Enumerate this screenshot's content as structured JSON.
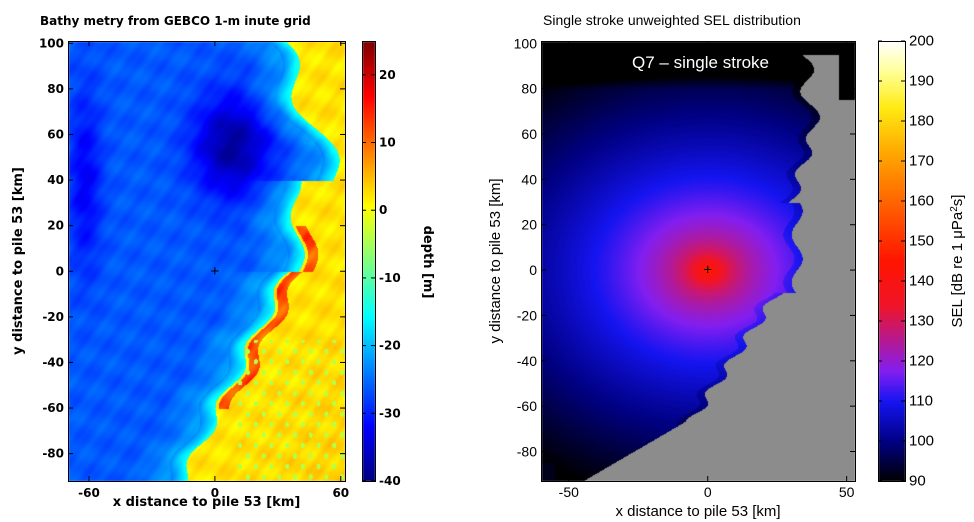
{
  "chart_data": [
    {
      "type": "heatmap",
      "title": "Bathy metry  from  GEBCO 1-m inute grid",
      "xlabel": "x distance to pile 53 [km]",
      "ylabel": "y distance to pile 53 [km]",
      "xlim": [
        -70,
        62
      ],
      "ylim": [
        -92,
        101
      ],
      "xticks": [
        -60,
        0,
        60
      ],
      "xtick_labels": [
        "-60",
        "0",
        "60"
      ],
      "yticks": [
        -80,
        -60,
        -40,
        -20,
        0,
        20,
        40,
        60,
        80,
        100
      ],
      "ytick_labels": [
        "-80",
        "-60",
        "-40",
        "-20",
        "0",
        "20",
        "40",
        "60",
        "80",
        "100"
      ],
      "marker": {
        "x": 0,
        "y": 0,
        "symbol": "+"
      },
      "colorbar": {
        "label": "depth [m]",
        "colormap": "jet",
        "range": [
          -40,
          25
        ],
        "ticks": [
          -40,
          -30,
          -20,
          -10,
          0,
          10,
          20
        ],
        "tick_labels": [
          "-40",
          "-30",
          "-20",
          "-10",
          "0",
          "10",
          "20"
        ]
      }
    },
    {
      "type": "heatmap",
      "title": "Single stroke unweighted SEL distribution",
      "annotation": "Q7 – single stroke",
      "xlabel": "x distance to pile 53 [km]",
      "ylabel": "y distance to pile 53 [km]",
      "xlim": [
        -60,
        53
      ],
      "ylim": [
        -93,
        101
      ],
      "xticks": [
        -50,
        0,
        50
      ],
      "xtick_labels": [
        "-50",
        "0",
        "50"
      ],
      "yticks": [
        -80,
        -60,
        -40,
        -20,
        0,
        20,
        40,
        60,
        80,
        100
      ],
      "ytick_labels": [
        "-80",
        "-60",
        "-40",
        "-20",
        "0",
        "20",
        "40",
        "60",
        "80",
        "100"
      ],
      "marker": {
        "x": 0,
        "y": 0,
        "symbol": "+"
      },
      "land_color": "#8c8c8c",
      "colorbar": {
        "label_prefix": "SEL [dB re 1 μPa",
        "label_sup": "2",
        "label_suffix": "s]",
        "colormap": "hot-jet",
        "range": [
          90,
          200
        ],
        "ticks": [
          90,
          100,
          110,
          120,
          130,
          140,
          150,
          160,
          170,
          180,
          190,
          200
        ],
        "tick_labels": [
          "90",
          "100",
          "110",
          "120",
          "130",
          "140",
          "150",
          "160",
          "170",
          "180",
          "190",
          "200"
        ]
      }
    }
  ]
}
